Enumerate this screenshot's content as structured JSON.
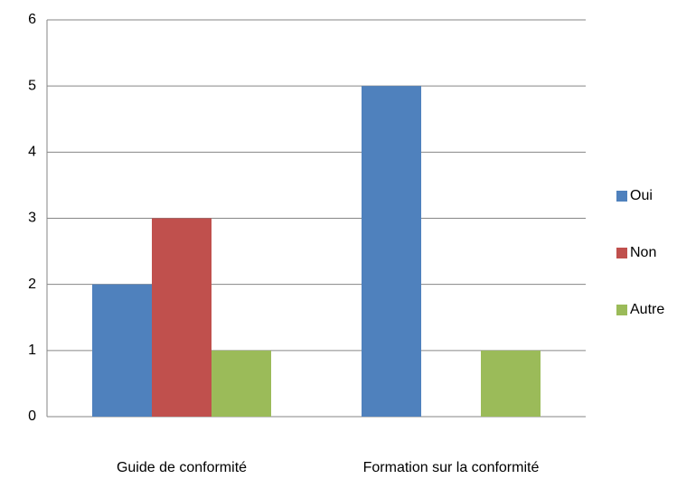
{
  "chart_data": {
    "type": "bar",
    "categories": [
      "Guide de conformité",
      "Formation sur la conformité"
    ],
    "series": [
      {
        "name": "Oui",
        "color": "#4f81bd",
        "values": [
          2,
          5
        ]
      },
      {
        "name": "Non",
        "color": "#c0504d",
        "values": [
          3,
          0
        ]
      },
      {
        "name": "Autre",
        "color": "#9bbb59",
        "values": [
          1,
          1
        ]
      }
    ],
    "ylim": [
      0,
      6
    ],
    "yticks": [
      0,
      1,
      2,
      3,
      4,
      5,
      6
    ],
    "grid": true,
    "legend": "right"
  }
}
